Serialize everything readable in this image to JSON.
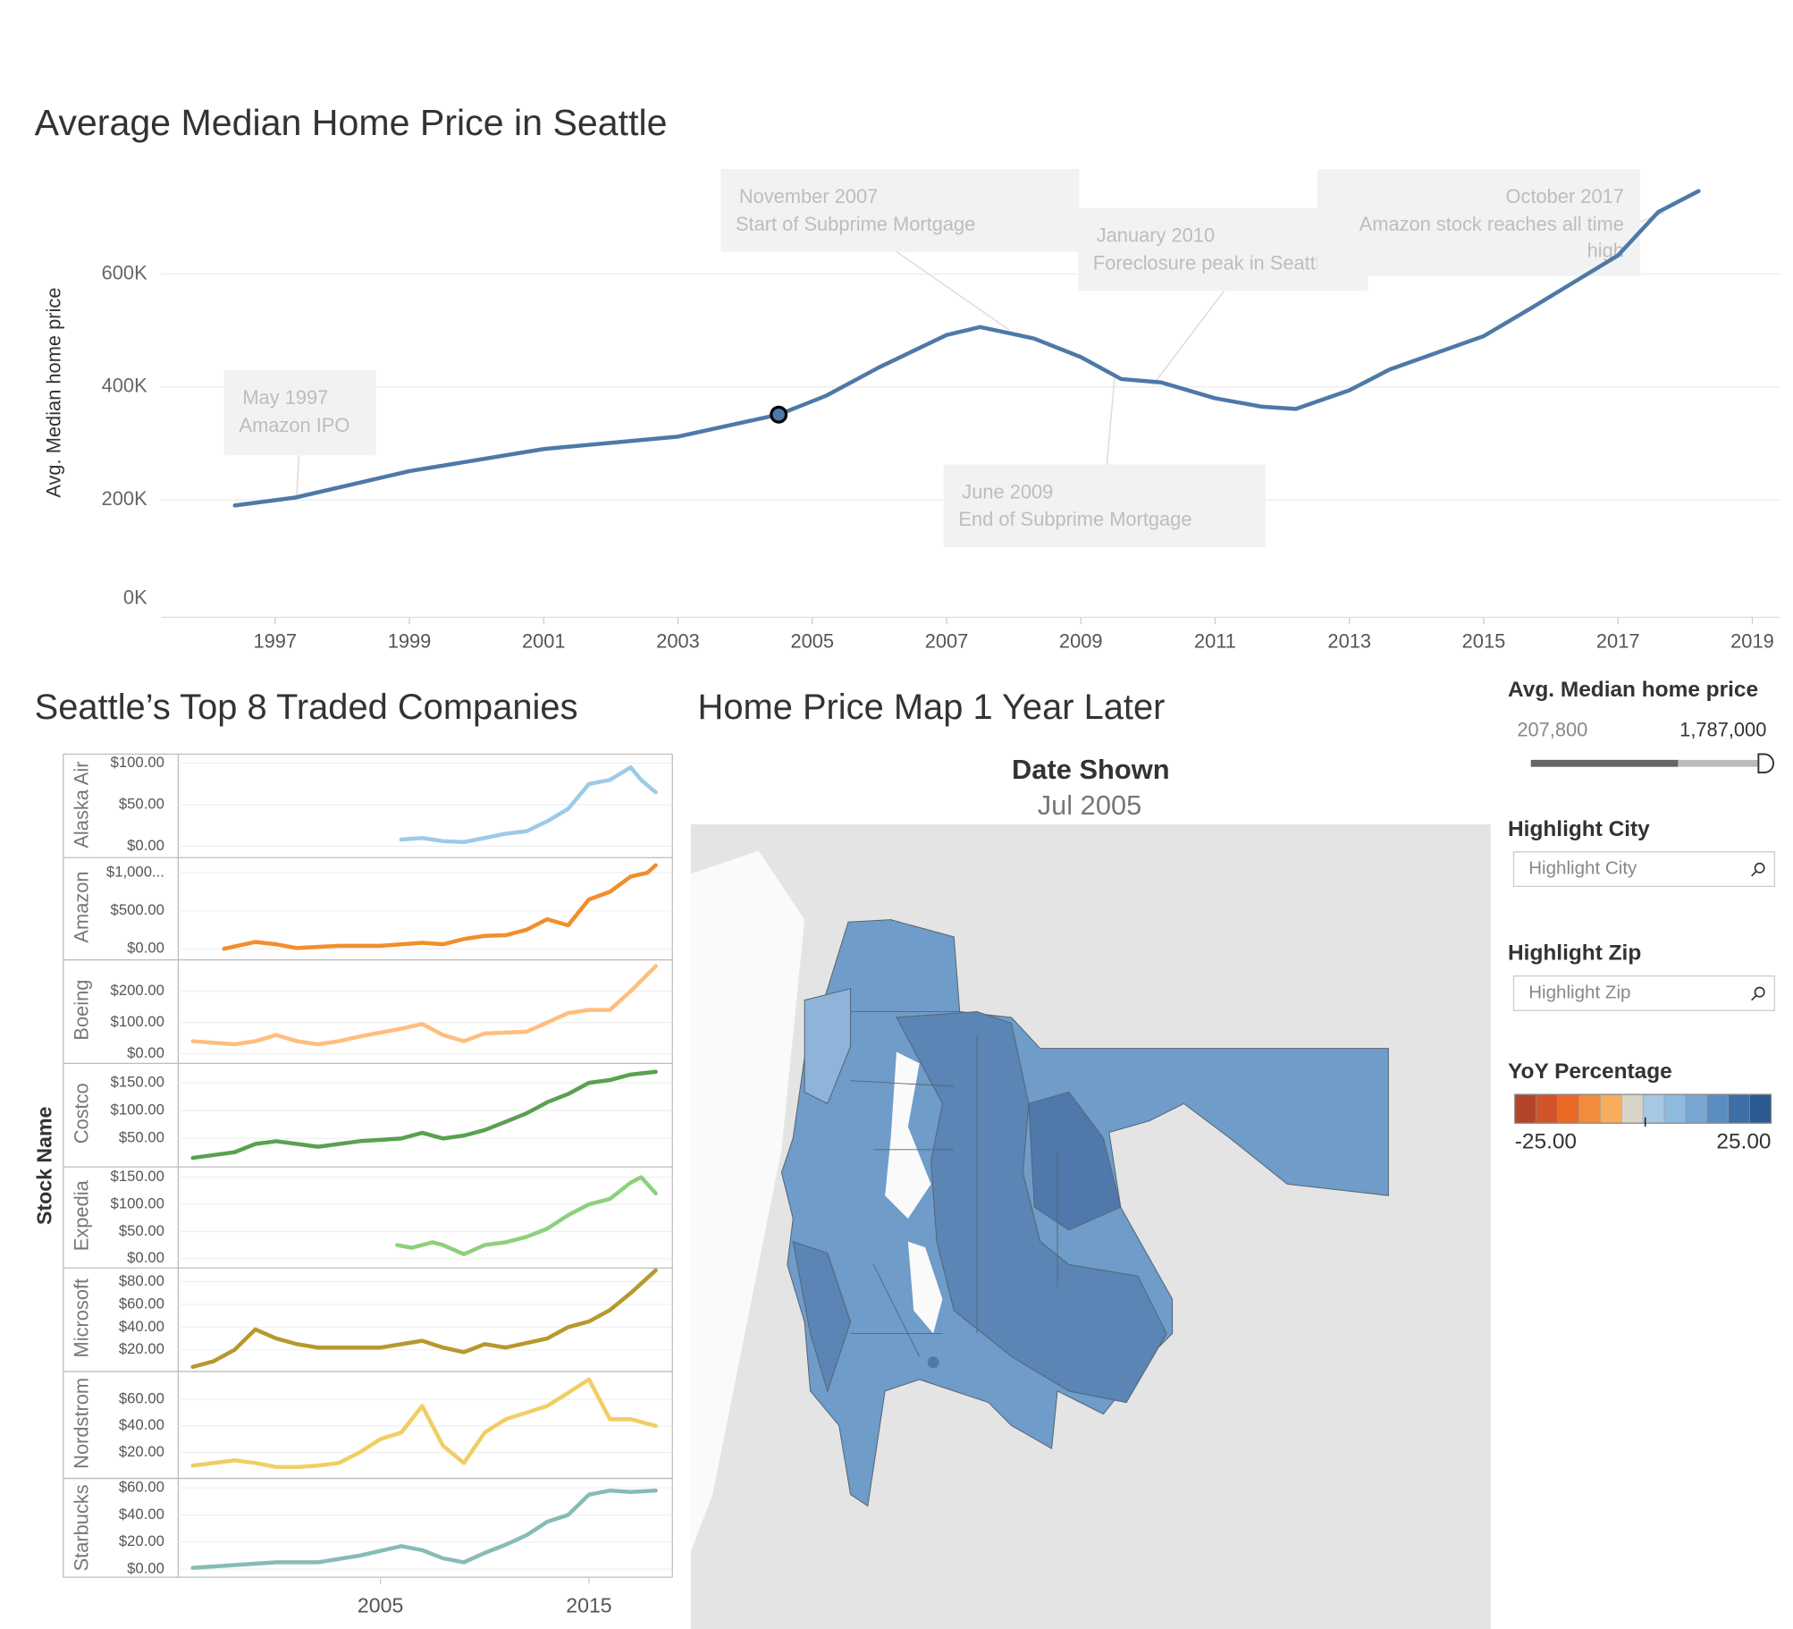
{
  "chart_data": [
    {
      "type": "line",
      "title": "Average Median Home Price in Seattle",
      "y_label": "Avg. Median home price",
      "color": "#4e79a7",
      "x": [
        1996.4,
        1997.3,
        1999,
        2001,
        2003,
        2004.5,
        2005.2,
        2006,
        2007,
        2007.5,
        2008.3,
        2009,
        2009.6,
        2010.2,
        2011,
        2011.7,
        2012.2,
        2013,
        2013.6,
        2015,
        2015.7,
        2017,
        2017.6,
        2018.2
      ],
      "values": [
        190000,
        204000,
        251000,
        290000,
        312000,
        351000,
        384000,
        435000,
        492000,
        506000,
        486000,
        453000,
        414000,
        408000,
        380000,
        365000,
        361000,
        394000,
        431000,
        490000,
        539000,
        633000,
        710000,
        747000
      ],
      "highlight_x": 2004.5,
      "xlim": [
        1995.3,
        2019.4
      ],
      "xticks": [
        1997,
        1999,
        2001,
        2003,
        2005,
        2007,
        2009,
        2011,
        2013,
        2015,
        2017,
        2019
      ],
      "ylim": [
        0,
        780000
      ],
      "yticks": [
        {
          "value": 0,
          "label": "0K"
        },
        {
          "value": 200000,
          "label": "200K"
        },
        {
          "value": 400000,
          "label": "400K"
        },
        {
          "value": 600000,
          "label": "600K"
        }
      ],
      "grid": true,
      "annotations": [
        {
          "date": "May 1997",
          "lines": [
            "Amazon IPO"
          ]
        },
        {
          "date": "November 2007",
          "lines": [
            "Start of Subprime Mortgage"
          ]
        },
        {
          "date": "January 2010",
          "lines": [
            "Foreclosure peak in Seattle"
          ]
        },
        {
          "date": "June 2009",
          "lines": [
            "End of Subprime Mortgage"
          ]
        },
        {
          "date": "October 2017",
          "lines": [
            "Amazon stock reaches all time",
            "high"
          ]
        }
      ]
    },
    {
      "type": "line",
      "title": "Seattle’s Top 8 Traded Companies",
      "y_label": "Stock Name",
      "xlim": [
        1995.3,
        2019
      ],
      "xticks": [
        2005,
        2015
      ],
      "series": [
        {
          "name": "Alaska Air",
          "color": "#9ecae9",
          "ylim": [
            -11,
            111
          ],
          "yticks": [
            {
              "value": 0,
              "label": "$0.00"
            },
            {
              "value": 50,
              "label": "$50.00"
            },
            {
              "value": 100,
              "label": "$100.00"
            }
          ],
          "x": [
            2006,
            2007,
            2008,
            2009,
            2010,
            2011,
            2012,
            2013,
            2014,
            2015,
            2016,
            2017,
            2017.5,
            2018.2
          ],
          "values": [
            8,
            10,
            6,
            5,
            10,
            15,
            18,
            30,
            45,
            75,
            80,
            95,
            80,
            65
          ]
        },
        {
          "name": "Amazon",
          "color": "#f28e2b",
          "ylim": [
            -100,
            1200
          ],
          "yticks": [
            {
              "value": 0,
              "label": "$0.00"
            },
            {
              "value": 500,
              "label": "$500.00"
            },
            {
              "value": 1000,
              "label": "$1,000..."
            }
          ],
          "x": [
            1997.5,
            1999,
            2000,
            2001,
            2003,
            2005,
            2007,
            2008,
            2009,
            2010,
            2011,
            2012,
            2013,
            2014,
            2015,
            2016,
            2017,
            2017.8,
            2018.2
          ],
          "values": [
            2,
            90,
            60,
            10,
            40,
            40,
            80,
            60,
            130,
            170,
            180,
            250,
            390,
            310,
            650,
            750,
            950,
            1000,
            1100
          ]
        },
        {
          "name": "Boeing",
          "color": "#ffbe7d",
          "ylim": [
            -20,
            300
          ],
          "yticks": [
            {
              "value": 0,
              "label": "$0.00"
            },
            {
              "value": 100,
              "label": "$100.00"
            },
            {
              "value": 200,
              "label": "$200.00"
            }
          ],
          "x": [
            1996,
            1998,
            1999,
            2000,
            2001,
            2002,
            2003,
            2004,
            2006,
            2007,
            2008,
            2009,
            2010,
            2012,
            2013,
            2014,
            2015,
            2016,
            2017,
            2018.2
          ],
          "values": [
            40,
            30,
            40,
            60,
            40,
            30,
            40,
            55,
            80,
            95,
            60,
            40,
            65,
            70,
            100,
            130,
            140,
            140,
            200,
            280
          ]
        },
        {
          "name": "Costco",
          "color": "#59a14f",
          "ylim": [
            5,
            185
          ],
          "yticks": [
            {
              "value": 50,
              "label": "$50.00"
            },
            {
              "value": 100,
              "label": "$100.00"
            },
            {
              "value": 150,
              "label": "$150.00"
            }
          ],
          "x": [
            1996,
            1998,
            1999,
            2000,
            2001,
            2002,
            2004,
            2006,
            2007,
            2008,
            2009,
            2010,
            2011,
            2012,
            2013,
            2014,
            2015,
            2016,
            2017,
            2018.2
          ],
          "values": [
            15,
            25,
            40,
            45,
            40,
            35,
            45,
            50,
            60,
            50,
            55,
            65,
            80,
            95,
            115,
            130,
            150,
            155,
            165,
            170
          ]
        },
        {
          "name": "Expedia",
          "color": "#8cd17d",
          "ylim": [
            -11,
            169
          ],
          "yticks": [
            {
              "value": 0,
              "label": "$0.00"
            },
            {
              "value": 50,
              "label": "$50.00"
            },
            {
              "value": 100,
              "label": "$100.00"
            },
            {
              "value": 150,
              "label": "$150.00"
            }
          ],
          "x": [
            2005.8,
            2006.5,
            2007.5,
            2008,
            2009,
            2010,
            2011,
            2012,
            2013,
            2014,
            2015,
            2016,
            2017,
            2017.5,
            2018.2
          ],
          "values": [
            25,
            20,
            30,
            25,
            8,
            25,
            30,
            40,
            55,
            80,
            100,
            110,
            140,
            150,
            120
          ]
        },
        {
          "name": "Microsoft",
          "color": "#b6992d",
          "ylim": [
            4,
            92
          ],
          "yticks": [
            {
              "value": 20,
              "label": "$20.00"
            },
            {
              "value": 40,
              "label": "$40.00"
            },
            {
              "value": 60,
              "label": "$60.00"
            },
            {
              "value": 80,
              "label": "$80.00"
            }
          ],
          "x": [
            1996,
            1997,
            1998,
            1999,
            2000,
            2001,
            2002,
            2003,
            2005,
            2007,
            2008,
            2009,
            2010,
            2011,
            2012,
            2013,
            2014,
            2015,
            2016,
            2017,
            2018.2
          ],
          "values": [
            5,
            10,
            20,
            38,
            30,
            25,
            22,
            22,
            22,
            28,
            22,
            18,
            25,
            22,
            26,
            30,
            40,
            45,
            55,
            70,
            90
          ]
        },
        {
          "name": "Nordstrom",
          "color": "#f1ce63",
          "ylim": [
            3,
            81
          ],
          "yticks": [
            {
              "value": 20,
              "label": "$20.00"
            },
            {
              "value": 40,
              "label": "$40.00"
            },
            {
              "value": 60,
              "label": "$60.00"
            }
          ],
          "x": [
            1996,
            1998,
            1999,
            2000,
            2001,
            2002,
            2003,
            2004,
            2005,
            2006,
            2007,
            2008,
            2009,
            2010,
            2011,
            2012,
            2013,
            2014,
            2015,
            2016,
            2017,
            2018.2
          ],
          "values": [
            10,
            14,
            12,
            9,
            9,
            10,
            12,
            20,
            30,
            35,
            55,
            25,
            12,
            35,
            45,
            50,
            55,
            65,
            75,
            45,
            45,
            40
          ]
        },
        {
          "name": "Starbucks",
          "color": "#86bcb6",
          "ylim": [
            -6,
            67
          ],
          "yticks": [
            {
              "value": 0,
              "label": "$0.00"
            },
            {
              "value": 20,
              "label": "$20.00"
            },
            {
              "value": 40,
              "label": "$40.00"
            },
            {
              "value": 60,
              "label": "$60.00"
            }
          ],
          "x": [
            1996,
            1998,
            2000,
            2002,
            2004,
            2006,
            2007,
            2008,
            2009,
            2010,
            2011,
            2012,
            2013,
            2014,
            2015,
            2016,
            2017,
            2018.2
          ],
          "values": [
            1,
            3,
            5,
            5,
            10,
            17,
            14,
            8,
            5,
            12,
            18,
            25,
            35,
            40,
            55,
            58,
            57,
            58
          ]
        }
      ]
    }
  ],
  "map": {
    "title": "Home Price Map 1 Year Later",
    "date_label": "Date Shown",
    "date": "Jul 2005"
  },
  "controls": {
    "price_filter": {
      "label": "Avg. Median home price",
      "min": "207,800",
      "max": "1,787,000"
    },
    "highlight_city": {
      "label": "Highlight City",
      "placeholder": "Highlight City"
    },
    "highlight_zip": {
      "label": "Highlight Zip",
      "placeholder": "Highlight Zip"
    },
    "yoy_legend": {
      "title": "YoY Percentage",
      "min": {
        "value": -25,
        "label": "-25.00"
      },
      "max": {
        "value": 25,
        "label": "25.00"
      },
      "colors": [
        "#b5452a",
        "#d2542b",
        "#ea6a25",
        "#f28c3c",
        "#f7ad5c",
        "#d9d4c8",
        "#a8c8e2",
        "#8ebadd",
        "#77a6d1",
        "#5c8dc2",
        "#3d6ea8",
        "#2a5a8f"
      ]
    }
  }
}
